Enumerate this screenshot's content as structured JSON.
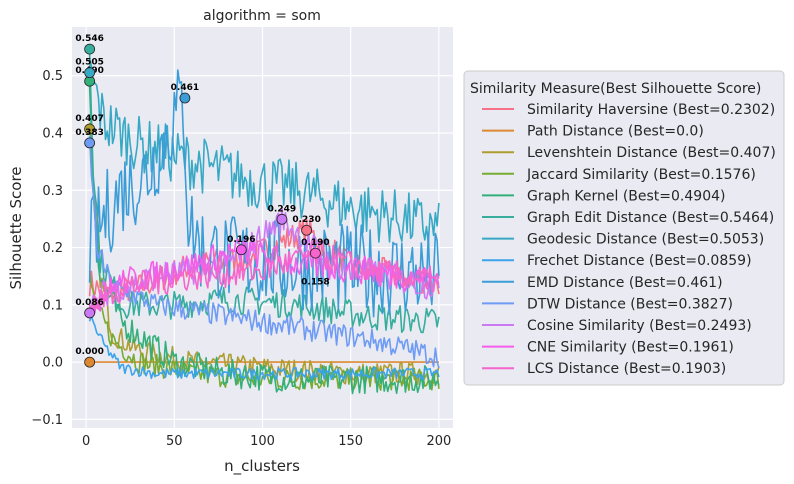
{
  "chart_data": {
    "type": "line",
    "title": "algorithm = som",
    "xlabel": "n_clusters",
    "ylabel": "Silhouette Score",
    "xlim": [
      -8,
      208
    ],
    "ylim": [
      -0.115,
      0.585
    ],
    "xticks": [
      0,
      50,
      100,
      150,
      200
    ],
    "yticks": [
      -0.1,
      0.0,
      0.1,
      0.2,
      0.3,
      0.4,
      0.5
    ],
    "ytick_labels": [
      "−0.1",
      "0.0",
      "0.1",
      "0.2",
      "0.3",
      "0.4",
      "0.5"
    ],
    "grid": true,
    "background": "#eaeaf2",
    "legend_title": "Similarity Measure(Best Silhouette Score)",
    "legend_position": "right, outside",
    "series": [
      {
        "name": "Similarity Haversine (Best=0.2302)",
        "color": "#f77189",
        "keypoints": [
          [
            2,
            0.14
          ],
          [
            10,
            0.12
          ],
          [
            30,
            0.13
          ],
          [
            60,
            0.17
          ],
          [
            90,
            0.18
          ],
          [
            125,
            0.23
          ],
          [
            150,
            0.17
          ],
          [
            180,
            0.15
          ],
          [
            200,
            0.14
          ]
        ],
        "best": {
          "x": 125,
          "y": 0.2302,
          "label": "0.230"
        }
      },
      {
        "name": "Path Distance (Best=0.0)",
        "color": "#dc8932",
        "keypoints": [
          [
            2,
            0.0
          ],
          [
            200,
            0.0
          ]
        ],
        "best": {
          "x": 2,
          "y": 0.0,
          "label": "0.000"
        }
      },
      {
        "name": "Levenshtein Distance (Best=0.407)",
        "color": "#ae9d31",
        "keypoints": [
          [
            2,
            0.407
          ],
          [
            4,
            0.3
          ],
          [
            8,
            0.15
          ],
          [
            15,
            0.05
          ],
          [
            30,
            0.02
          ],
          [
            60,
            0.0
          ],
          [
            100,
            -0.01
          ],
          [
            150,
            -0.02
          ],
          [
            200,
            -0.02
          ]
        ],
        "best": {
          "x": 2,
          "y": 0.407,
          "label": "0.407"
        }
      },
      {
        "name": "Jaccard Similarity (Best=0.1576)",
        "color": "#77ab31",
        "keypoints": [
          [
            2,
            0.15
          ],
          [
            5,
            0.1
          ],
          [
            15,
            0.04
          ],
          [
            30,
            0.0
          ],
          [
            60,
            -0.02
          ],
          [
            100,
            -0.03
          ],
          [
            150,
            -0.03
          ],
          [
            200,
            -0.03
          ]
        ],
        "best": null
      },
      {
        "name": "Graph Kernel (Best=0.4904)",
        "color": "#33b07a",
        "keypoints": [
          [
            2,
            0.4904
          ],
          [
            4,
            0.3
          ],
          [
            8,
            0.15
          ],
          [
            20,
            0.07
          ],
          [
            50,
            0.0
          ],
          [
            80,
            -0.02
          ],
          [
            120,
            -0.03
          ],
          [
            160,
            -0.03
          ],
          [
            200,
            -0.03
          ]
        ],
        "best": {
          "x": 2,
          "y": 0.4904,
          "label": "0.490"
        }
      },
      {
        "name": "Graph Edit Distance (Best=0.5464)",
        "color": "#36ad9d",
        "keypoints": [
          [
            2,
            0.5464
          ],
          [
            4,
            0.35
          ],
          [
            8,
            0.18
          ],
          [
            20,
            0.1
          ],
          [
            50,
            0.1
          ],
          [
            80,
            0.11
          ],
          [
            120,
            0.1
          ],
          [
            160,
            0.08
          ],
          [
            200,
            0.07
          ]
        ],
        "best": {
          "x": 2,
          "y": 0.5464,
          "label": "0.546"
        }
      },
      {
        "name": "Geodesic Distance (Best=0.5053)",
        "color": "#38a9c5",
        "keypoints": [
          [
            2,
            0.5053
          ],
          [
            10,
            0.42
          ],
          [
            30,
            0.38
          ],
          [
            60,
            0.35
          ],
          [
            90,
            0.32
          ],
          [
            120,
            0.3
          ],
          [
            150,
            0.27
          ],
          [
            180,
            0.25
          ],
          [
            200,
            0.23
          ]
        ],
        "best": {
          "x": 2,
          "y": 0.5053,
          "label": "0.505"
        }
      },
      {
        "name": "Frechet Distance (Best=0.0859)",
        "color": "#3ba3ec",
        "keypoints": [
          [
            2,
            0.08
          ],
          [
            10,
            0.03
          ],
          [
            20,
            -0.01
          ],
          [
            40,
            -0.02
          ],
          [
            100,
            -0.02
          ],
          [
            150,
            -0.02
          ],
          [
            200,
            -0.02
          ]
        ],
        "best": null
      },
      {
        "name": "EMD Distance (Best=0.461)",
        "color": "#3a9dd8",
        "keypoints": [
          [
            2,
            0.2
          ],
          [
            10,
            0.25
          ],
          [
            20,
            0.3
          ],
          [
            35,
            0.33
          ],
          [
            55,
            0.461
          ],
          [
            58,
            0.25
          ],
          [
            65,
            0.2
          ],
          [
            80,
            0.18
          ],
          [
            120,
            0.17
          ],
          [
            160,
            0.16
          ],
          [
            200,
            0.15
          ]
        ],
        "best": {
          "x": 56,
          "y": 0.461,
          "label": "0.461"
        }
      },
      {
        "name": "DTW Distance (Best=0.3827)",
        "color": "#6e9bf4",
        "keypoints": [
          [
            2,
            0.3827
          ],
          [
            6,
            0.2
          ],
          [
            15,
            0.13
          ],
          [
            40,
            0.1
          ],
          [
            80,
            0.08
          ],
          [
            120,
            0.06
          ],
          [
            160,
            0.04
          ],
          [
            200,
            0.01
          ]
        ],
        "best": {
          "x": 2,
          "y": 0.3827,
          "label": "0.383"
        }
      },
      {
        "name": "Cosine Similarity (Best=0.2493)",
        "color": "#cc7af4",
        "keypoints": [
          [
            2,
            0.0859
          ],
          [
            10,
            0.12
          ],
          [
            40,
            0.15
          ],
          [
            80,
            0.17
          ],
          [
            111,
            0.2493
          ],
          [
            140,
            0.17
          ],
          [
            170,
            0.15
          ],
          [
            200,
            0.13
          ]
        ],
        "best": {
          "x": 111,
          "y": 0.2493,
          "label": "0.249"
        }
      },
      {
        "name": "CNE Similarity (Best=0.1961)",
        "color": "#f45deb",
        "keypoints": [
          [
            2,
            0.1
          ],
          [
            20,
            0.14
          ],
          [
            50,
            0.16
          ],
          [
            88,
            0.1961
          ],
          [
            120,
            0.17
          ],
          [
            160,
            0.16
          ],
          [
            200,
            0.14
          ]
        ],
        "best": {
          "x": 88,
          "y": 0.1961,
          "label": "0.196"
        }
      },
      {
        "name": "LCS Distance (Best=0.1903)",
        "color": "#f565cc",
        "keypoints": [
          [
            2,
            0.1
          ],
          [
            20,
            0.13
          ],
          [
            60,
            0.15
          ],
          [
            100,
            0.16
          ],
          [
            130,
            0.1903
          ],
          [
            160,
            0.16
          ],
          [
            200,
            0.14
          ]
        ],
        "best": {
          "x": 130,
          "y": 0.1903,
          "label": "0.190"
        }
      }
    ],
    "extra_annotations": [
      {
        "x": 2,
        "y": 0.0859,
        "label": "0.086",
        "color": "#cc7af4"
      },
      {
        "x": 130,
        "y": 0.158,
        "label": "0.158",
        "color": null
      }
    ]
  }
}
